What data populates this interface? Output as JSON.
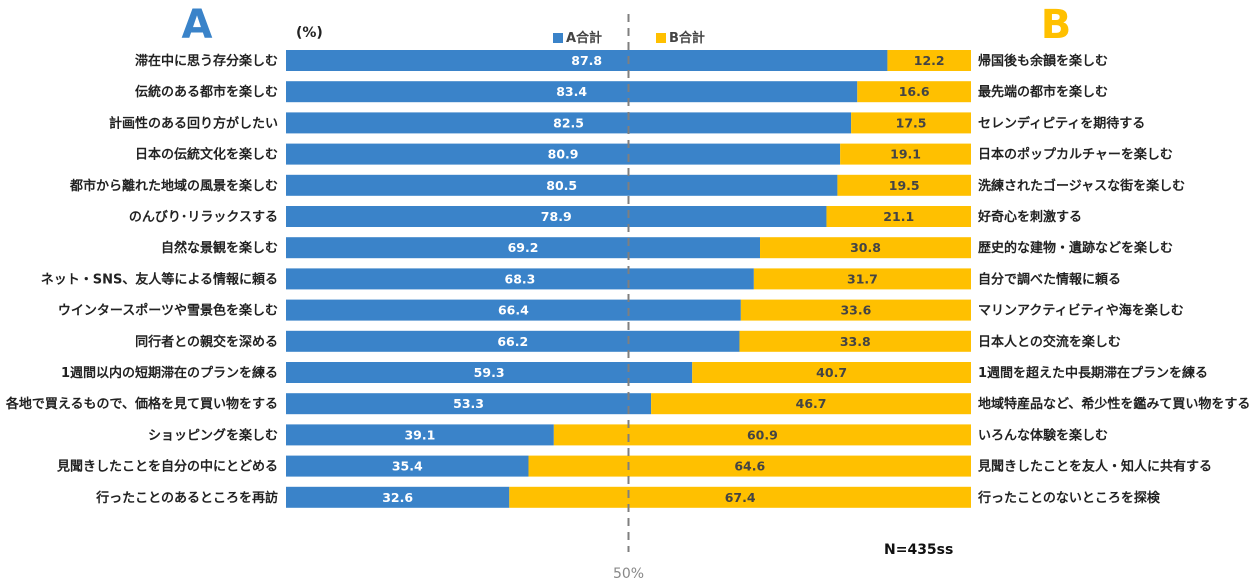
{
  "chart_data": {
    "type": "bar",
    "orientation": "horizontal-stacked-100",
    "title_left": "A",
    "title_right": "B",
    "unit": "(%)",
    "sample_note": "N=435ss",
    "midline_label": "50%",
    "midline_value": 50,
    "xlim": [
      0,
      100
    ],
    "colors": {
      "a": "#3a83c9",
      "b": "#ffc000",
      "letter_a": "#3a83c9",
      "letter_b": "#ffc000"
    },
    "series": [
      {
        "name": "A合計",
        "key": "a"
      },
      {
        "name": "B合計",
        "key": "b"
      }
    ],
    "rows": [
      {
        "a_label": "滞在中に思う存分楽しむ",
        "b_label": "帰国後も余韻を楽しむ",
        "a": "87.8",
        "b": "12.2"
      },
      {
        "a_label": "伝統のある都市を楽しむ",
        "b_label": "最先端の都市を楽しむ",
        "a": "83.4",
        "b": "16.6"
      },
      {
        "a_label": "計画性のある回り方がしたい",
        "b_label": "セレンディピティを期待する",
        "a": "82.5",
        "b": "17.5"
      },
      {
        "a_label": "日本の伝統文化を楽しむ",
        "b_label": "日本のポップカルチャーを楽しむ",
        "a": "80.9",
        "b": "19.1"
      },
      {
        "a_label": "都市から離れた地域の風景を楽しむ",
        "b_label": "洗練されたゴージャスな街を楽しむ",
        "a": "80.5",
        "b": "19.5"
      },
      {
        "a_label": "のんびり･リラックスする",
        "b_label": "好奇心を刺激する",
        "a": "78.9",
        "b": "21.1"
      },
      {
        "a_label": "自然な景観を楽しむ",
        "b_label": "歴史的な建物・遺跡などを楽しむ",
        "a": "69.2",
        "b": "30.8"
      },
      {
        "a_label": "ネット・SNS、友人等による情報に頼る",
        "b_label": "自分で調べた情報に頼る",
        "a": "68.3",
        "b": "31.7"
      },
      {
        "a_label": "ウインタースポーツや雪景色を楽しむ",
        "b_label": "マリンアクティビティや海を楽しむ",
        "a": "66.4",
        "b": "33.6"
      },
      {
        "a_label": "同行者との親交を深める",
        "b_label": "日本人との交流を楽しむ",
        "a": "66.2",
        "b": "33.8"
      },
      {
        "a_label": "1週間以内の短期滞在のプランを練る",
        "b_label": "1週間を超えた中長期滞在プランを練る",
        "a": "59.3",
        "b": "40.7"
      },
      {
        "a_label": "各地で買えるもので、価格を見て買い物をする",
        "b_label": "地域特産品など、希少性を鑑みて買い物をする",
        "a": "53.3",
        "b": "46.7"
      },
      {
        "a_label": "ショッピングを楽しむ",
        "b_label": "いろんな体験を楽しむ",
        "a": "39.1",
        "b": "60.9"
      },
      {
        "a_label": "見聞きしたことを自分の中にとどめる",
        "b_label": "見聞きしたことを友人・知人に共有する",
        "a": "35.4",
        "b": "64.6"
      },
      {
        "a_label": "行ったことのあるところを再訪",
        "b_label": "行ったことのないところを探検",
        "a": "32.6",
        "b": "67.4"
      }
    ]
  }
}
